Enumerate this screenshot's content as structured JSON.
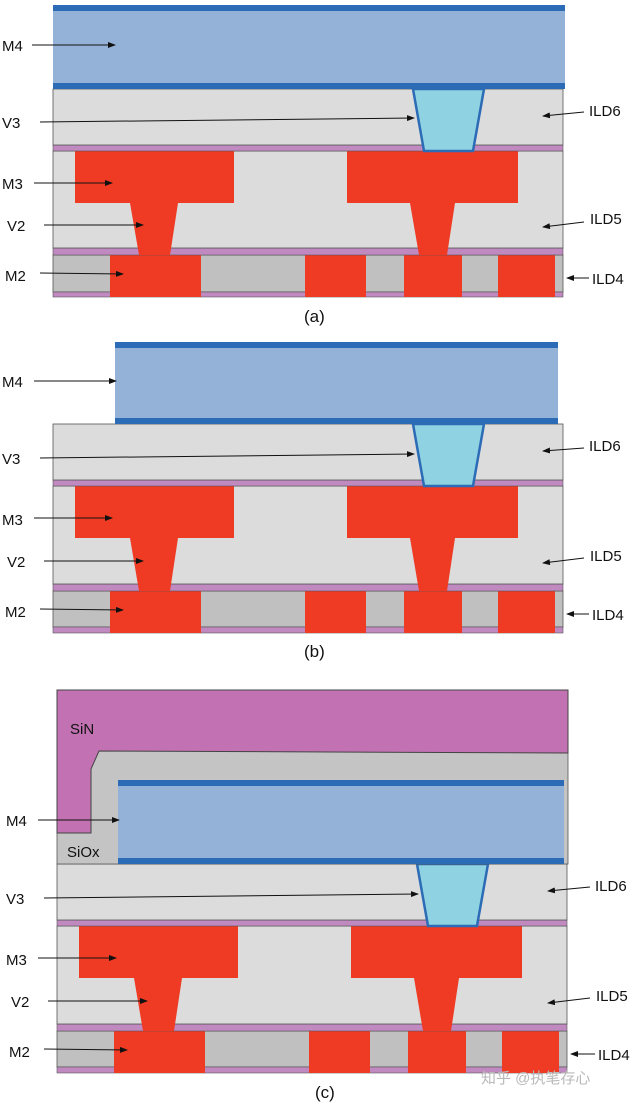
{
  "labels": {
    "m4": "M4",
    "v3": "V3",
    "m3": "M3",
    "v2": "V2",
    "m2": "M2",
    "ild6": "ILD6",
    "ild5": "ILD5",
    "ild4": "ILD4",
    "sin": "SiN",
    "siox": "SiOx"
  },
  "captions": {
    "a": "(a)",
    "b": "(b)",
    "c": "(c)"
  },
  "watermark": "知乎 @执笔存心",
  "colors": {
    "m4_fill": "#94b2d7",
    "m4_cap": "#2c6bb6",
    "via3": "#8fd2e1",
    "metal": "#ef3a24",
    "ild": "#dcdcdc",
    "ild4": "#c0c0c0",
    "barrier": "#c08ac0",
    "sin": "#c272b2",
    "siox": "#c4c4c4"
  }
}
